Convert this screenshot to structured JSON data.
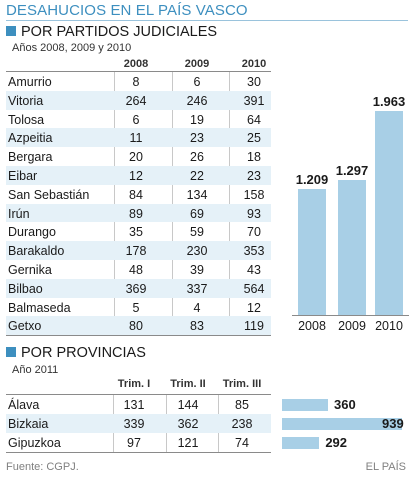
{
  "header": {
    "title": "DESAHUCIOS EN EL PAÍS VASCO"
  },
  "section1": {
    "title": "POR PARTIDOS JUDICIALES",
    "subtitle": "Años 2008, 2009 y 2010",
    "columns": [
      "2008",
      "2009",
      "2010"
    ],
    "rows": [
      {
        "name": "Amurrio",
        "values": [
          "8",
          "6",
          "30"
        ]
      },
      {
        "name": "Vitoria",
        "values": [
          "264",
          "246",
          "391"
        ]
      },
      {
        "name": "Tolosa",
        "values": [
          "6",
          "19",
          "64"
        ]
      },
      {
        "name": "Azpeitia",
        "values": [
          "11",
          "23",
          "25"
        ]
      },
      {
        "name": "Bergara",
        "values": [
          "20",
          "26",
          "18"
        ]
      },
      {
        "name": "Eibar",
        "values": [
          "12",
          "22",
          "23"
        ]
      },
      {
        "name": "San Sebastián",
        "values": [
          "84",
          "134",
          "158"
        ]
      },
      {
        "name": "Irún",
        "values": [
          "89",
          "69",
          "93"
        ]
      },
      {
        "name": "Durango",
        "values": [
          "35",
          "59",
          "70"
        ]
      },
      {
        "name": "Barakaldo",
        "values": [
          "178",
          "230",
          "353"
        ]
      },
      {
        "name": "Gernika",
        "values": [
          "48",
          "39",
          "43"
        ]
      },
      {
        "name": "Bilbao",
        "values": [
          "369",
          "337",
          "564"
        ]
      },
      {
        "name": "Balmaseda",
        "values": [
          "5",
          "4",
          "12"
        ]
      },
      {
        "name": "Getxo",
        "values": [
          "80",
          "83",
          "119"
        ]
      }
    ]
  },
  "section2": {
    "title": "POR PROVINCIAS",
    "subtitle": "Año 2011",
    "columns": [
      "Trim. I",
      "Trim. II",
      "Trim. III"
    ],
    "rows": [
      {
        "name": "Álava",
        "values": [
          "131",
          "144",
          "85"
        ]
      },
      {
        "name": "Bizkaia",
        "values": [
          "339",
          "362",
          "238"
        ]
      },
      {
        "name": "Gipuzkoa",
        "values": [
          "97",
          "121",
          "74"
        ]
      }
    ]
  },
  "footer": {
    "source": "Fuente: CGPJ.",
    "credit": "EL PAÍS"
  },
  "colors": {
    "accent": "#3d8fbf",
    "bar": "#a8cfe6",
    "band": "#e5f1f8"
  },
  "chart_data": [
    {
      "type": "bar",
      "categories": [
        "2008",
        "2009",
        "2010"
      ],
      "values": [
        1209,
        1297,
        1963
      ],
      "value_labels": [
        "1.209",
        "1.297",
        "1.963"
      ],
      "ylim": [
        0,
        2100
      ]
    },
    {
      "type": "bar",
      "orientation": "horizontal",
      "categories": [
        "Álava",
        "Bizkaia",
        "Gipuzkoa"
      ],
      "values": [
        360,
        939,
        292
      ],
      "value_labels": [
        "360",
        "939",
        "292"
      ],
      "xlim": [
        0,
        939
      ]
    }
  ]
}
